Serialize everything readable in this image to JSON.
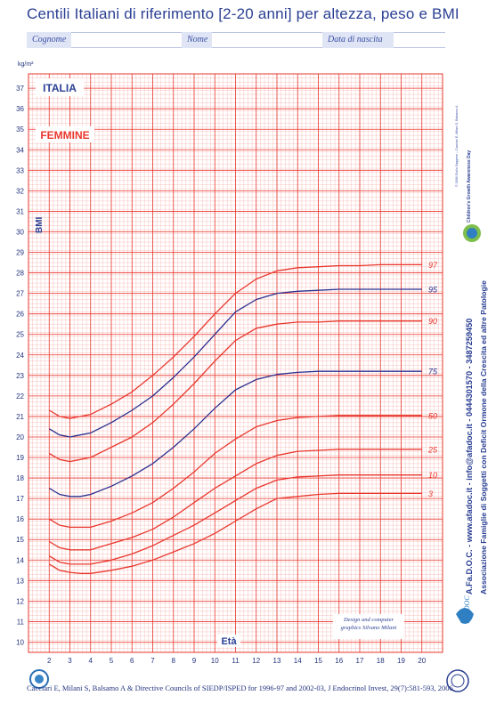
{
  "page": {
    "title": "Centili Italiani di riferimento [2-20 anni] per altezza, peso e BMI",
    "fields": [
      {
        "label": "Cognome"
      },
      {
        "label": "Nome"
      },
      {
        "label": "Data di nascita"
      }
    ],
    "badge_country": "ITALIA",
    "badge_sex": "FEMMINE",
    "design_credit": "Design and computer graphics Silvano Milani",
    "copyright": "© 2006 Giulio Saggese – Cacciari E, Milani S, Balsamo A",
    "side_line1": "A.Fa.D.O.C. - www.afadoc.it - info@afadoc.it - 0444301570 - 3487259450",
    "side_line2": "Associazione Famiglie di Soggetti con Deficit Ormone della Crescita ed altre Patologie",
    "logo_text": "Children's Growth Awareness Day",
    "afadoc_label": "AFaDOC",
    "citation": "Cacciari E, Milani S, Balsamo A & Directive Councils of SIEDP/ISPED for 1996-97 and 2002-03, J Endocrinol Invest, 29(7):581-593, 2006."
  },
  "chart_data": {
    "type": "line",
    "title": "Centili Italiani di riferimento [2-20 anni] per altezza, peso e BMI",
    "xlabel": "Età",
    "ylabel": "BMI",
    "yunit": "kg/m²",
    "xlim": [
      2,
      20
    ],
    "ylim": [
      10,
      37
    ],
    "xticks": [
      2,
      3,
      4,
      5,
      6,
      7,
      8,
      9,
      10,
      11,
      12,
      13,
      14,
      15,
      16,
      17,
      18,
      19,
      20
    ],
    "yticks": [
      10,
      11,
      12,
      13,
      14,
      15,
      16,
      17,
      18,
      19,
      20,
      21,
      22,
      23,
      24,
      25,
      26,
      27,
      28,
      29,
      30,
      31,
      32,
      33,
      34,
      35,
      36,
      37
    ],
    "grid": true,
    "x": [
      2,
      2.5,
      3,
      3.5,
      4,
      5,
      6,
      7,
      8,
      9,
      10,
      11,
      12,
      13,
      14,
      15,
      16,
      17,
      18,
      19,
      20
    ],
    "series": [
      {
        "name": "97",
        "color": "#e8372d",
        "values": [
          21.3,
          21.0,
          20.9,
          21.0,
          21.1,
          21.6,
          22.2,
          23.0,
          23.9,
          24.9,
          26.0,
          27.0,
          27.7,
          28.1,
          28.25,
          28.3,
          28.35,
          28.35,
          28.4,
          28.4,
          28.4
        ]
      },
      {
        "name": "95",
        "color": "#2b2f8e",
        "values": [
          20.4,
          20.1,
          20.0,
          20.1,
          20.2,
          20.7,
          21.3,
          22.0,
          22.9,
          23.9,
          25.0,
          26.1,
          26.7,
          27.0,
          27.1,
          27.15,
          27.2,
          27.2,
          27.2,
          27.2,
          27.2
        ]
      },
      {
        "name": "90",
        "color": "#e8372d",
        "values": [
          19.2,
          18.9,
          18.8,
          18.9,
          19.0,
          19.5,
          20.0,
          20.7,
          21.6,
          22.6,
          23.7,
          24.7,
          25.3,
          25.5,
          25.6,
          25.6,
          25.65,
          25.65,
          25.65,
          25.65,
          25.65
        ]
      },
      {
        "name": "75",
        "color": "#2b2f8e",
        "values": [
          17.5,
          17.2,
          17.1,
          17.1,
          17.2,
          17.6,
          18.1,
          18.7,
          19.5,
          20.4,
          21.4,
          22.3,
          22.8,
          23.05,
          23.15,
          23.2,
          23.2,
          23.2,
          23.2,
          23.2,
          23.2
        ]
      },
      {
        "name": "50",
        "color": "#e8372d",
        "values": [
          16.0,
          15.7,
          15.6,
          15.6,
          15.6,
          15.9,
          16.3,
          16.8,
          17.5,
          18.3,
          19.2,
          19.9,
          20.5,
          20.8,
          20.95,
          21.0,
          21.05,
          21.05,
          21.05,
          21.05,
          21.05
        ]
      },
      {
        "name": "25",
        "color": "#e8372d",
        "values": [
          14.9,
          14.6,
          14.5,
          14.5,
          14.5,
          14.8,
          15.1,
          15.5,
          16.1,
          16.8,
          17.5,
          18.1,
          18.7,
          19.1,
          19.3,
          19.35,
          19.4,
          19.4,
          19.4,
          19.4,
          19.4
        ]
      },
      {
        "name": "10",
        "color": "#e8372d",
        "values": [
          14.2,
          13.9,
          13.8,
          13.8,
          13.8,
          14.0,
          14.3,
          14.7,
          15.2,
          15.7,
          16.3,
          16.9,
          17.5,
          17.9,
          18.05,
          18.1,
          18.15,
          18.15,
          18.15,
          18.15,
          18.15
        ]
      },
      {
        "name": "3",
        "color": "#e8372d",
        "values": [
          13.8,
          13.5,
          13.4,
          13.35,
          13.35,
          13.5,
          13.7,
          14.0,
          14.4,
          14.8,
          15.3,
          15.9,
          16.5,
          17.0,
          17.1,
          17.2,
          17.25,
          17.25,
          17.25,
          17.25,
          17.25
        ]
      }
    ]
  }
}
